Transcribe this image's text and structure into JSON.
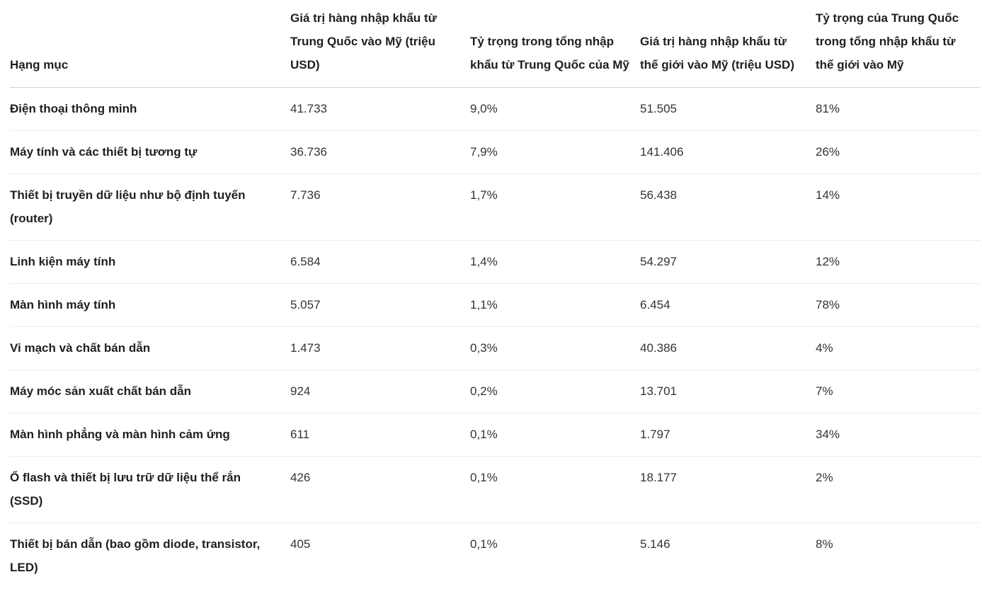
{
  "table": {
    "headers": [
      "Hạng mục",
      "Giá trị hàng nhập khẩu từ Trung Quốc vào Mỹ (triệu USD)",
      "Tỷ trọng trong tổng nhập khẩu từ Trung Quốc của Mỹ",
      "Giá trị hàng nhập khẩu từ thế giới vào Mỹ (triệu USD)",
      "Tỷ trọng của Trung Quốc trong tổng nhập khẩu từ thế giới vào Mỹ"
    ],
    "rows": [
      [
        "Điện thoại thông minh",
        "41.733",
        "9,0%",
        "51.505",
        "81%"
      ],
      [
        "Máy tính và các thiết bị tương tự",
        "36.736",
        "7,9%",
        "141.406",
        "26%"
      ],
      [
        "Thiết bị truyền dữ liệu như bộ định tuyến (router)",
        "7.736",
        "1,7%",
        "56.438",
        "14%"
      ],
      [
        "Linh kiện máy tính",
        "6.584",
        "1,4%",
        "54.297",
        "12%"
      ],
      [
        "Màn hình máy tính",
        "5.057",
        "1,1%",
        "6.454",
        "78%"
      ],
      [
        "Vi mạch và chất bán dẫn",
        "1.473",
        "0,3%",
        "40.386",
        "4%"
      ],
      [
        "Máy móc sản xuất chất bán dẫn",
        "924",
        "0,2%",
        "13.701",
        "7%"
      ],
      [
        "Màn hình phẳng và màn hình cảm ứng",
        "611",
        "0,1%",
        "1.797",
        "34%"
      ],
      [
        "Ổ flash và thiết bị lưu trữ dữ liệu thể rắn (SSD)",
        "426",
        "0,1%",
        "18.177",
        "2%"
      ],
      [
        "Thiết bị bán dẫn (bao gồm diode, transistor, LED)",
        "405",
        "0,1%",
        "5.146",
        "8%"
      ]
    ]
  }
}
